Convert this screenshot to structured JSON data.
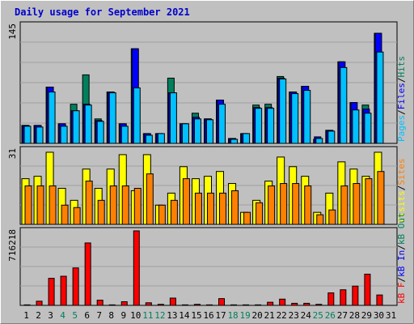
{
  "title": "Daily usage for September 2021",
  "colors": {
    "background": "#c0c0c0",
    "title": "#0000cc",
    "pages": "#00c0ff",
    "files": "#0000ff",
    "hits": "#00805c",
    "visits": "#ffff00",
    "sites": "#ff8000",
    "kbin": "#0000ff",
    "kbout": "#00805c",
    "kbf": "#ff0000",
    "weekend_label": "#00805c",
    "grid": "#a0a0a0"
  },
  "chart_data": [
    {
      "type": "bar",
      "name": "hits-files-pages",
      "categories": [
        "1",
        "2",
        "3",
        "4",
        "5",
        "6",
        "7",
        "8",
        "9",
        "10",
        "11",
        "12",
        "13",
        "14",
        "15",
        "16",
        "17",
        "18",
        "19",
        "20",
        "21",
        "22",
        "23",
        "24",
        "25",
        "26",
        "27",
        "28",
        "29",
        "30",
        "31"
      ],
      "ymax_label": "145",
      "ylim": [
        0,
        145
      ],
      "legend": [
        "Pages",
        "/",
        "Files",
        "/",
        "Hits"
      ],
      "series": [
        {
          "name": "Hits",
          "values": [
            22,
            22,
            69,
            24,
            48,
            84,
            30,
            63,
            24,
            116,
            12,
            12,
            80,
            24,
            37,
            30,
            53,
            6,
            12,
            47,
            48,
            82,
            63,
            70,
            5,
            16,
            100,
            50,
            47,
            135,
            0
          ]
        },
        {
          "name": "Files",
          "values": [
            22,
            22,
            69,
            24,
            40,
            48,
            28,
            63,
            24,
            116,
            12,
            12,
            62,
            24,
            32,
            30,
            53,
            6,
            12,
            44,
            44,
            80,
            63,
            70,
            8,
            16,
            100,
            50,
            42,
            135,
            0
          ]
        },
        {
          "name": "Pages",
          "values": [
            21,
            20,
            63,
            21,
            40,
            47,
            27,
            62,
            21,
            68,
            10,
            12,
            62,
            24,
            30,
            29,
            48,
            5,
            12,
            43,
            43,
            79,
            61,
            65,
            6,
            15,
            93,
            41,
            37,
            112,
            0
          ]
        }
      ]
    },
    {
      "type": "bar",
      "name": "visits-sites",
      "categories": [
        "1",
        "2",
        "3",
        "4",
        "5",
        "6",
        "7",
        "8",
        "9",
        "10",
        "11",
        "12",
        "13",
        "14",
        "15",
        "16",
        "17",
        "18",
        "19",
        "20",
        "21",
        "22",
        "23",
        "24",
        "25",
        "26",
        "27",
        "28",
        "29",
        "30",
        "31"
      ],
      "ymax_label": "31",
      "ylim": [
        0,
        31
      ],
      "legend": [
        "Visits",
        "/",
        "Sites"
      ],
      "series": [
        {
          "name": "Visits",
          "values": [
            19,
            20,
            30,
            15,
            10,
            23,
            15,
            23,
            29,
            14,
            29,
            8,
            13,
            24,
            19,
            20,
            22,
            17,
            5,
            10,
            18,
            28,
            24,
            20,
            5,
            13,
            26,
            23,
            20,
            30,
            0
          ]
        },
        {
          "name": "Sites",
          "values": [
            16,
            16,
            16,
            8,
            7,
            18,
            10,
            16,
            16,
            15,
            21,
            8,
            10,
            19,
            13,
            13,
            13,
            14,
            5,
            9,
            16,
            17,
            17,
            16,
            4,
            6,
            16,
            17,
            19,
            22,
            0
          ]
        }
      ]
    },
    {
      "type": "bar",
      "name": "kbytes",
      "categories": [
        "1",
        "2",
        "3",
        "4",
        "5",
        "6",
        "7",
        "8",
        "9",
        "10",
        "11",
        "12",
        "13",
        "14",
        "15",
        "16",
        "17",
        "18",
        "19",
        "20",
        "21",
        "22",
        "23",
        "24",
        "25",
        "26",
        "27",
        "28",
        "29",
        "30",
        "31"
      ],
      "ymax_label": "716218",
      "ylim": [
        0,
        716218
      ],
      "legend": [
        "kB F",
        "/",
        "kB In",
        "/",
        "kB Out"
      ],
      "series": [
        {
          "name": "kB F",
          "values": [
            5000,
            40000,
            260000,
            280000,
            360000,
            600000,
            50000,
            5000,
            35000,
            716218,
            25000,
            10000,
            70000,
            5000,
            10000,
            5000,
            65000,
            5000,
            5000,
            5000,
            30000,
            60000,
            20000,
            20000,
            10000,
            120000,
            150000,
            185000,
            300000,
            100000,
            0
          ]
        }
      ]
    }
  ],
  "x_labels": [
    "1",
    "2",
    "3",
    "4",
    "5",
    "6",
    "7",
    "8",
    "9",
    "10",
    "11",
    "12",
    "13",
    "14",
    "15",
    "16",
    "17",
    "18",
    "19",
    "20",
    "21",
    "22",
    "23",
    "24",
    "25",
    "26",
    "27",
    "28",
    "29",
    "30",
    "31"
  ],
  "weekend_days": [
    "4",
    "5",
    "11",
    "12",
    "18",
    "19",
    "25",
    "26"
  ]
}
